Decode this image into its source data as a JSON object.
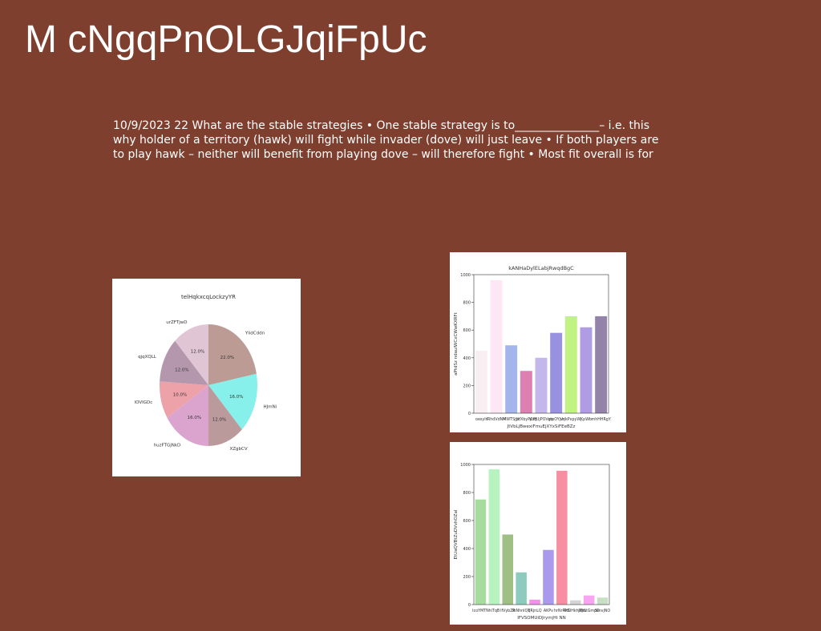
{
  "slide": {
    "title": "M cNgqPnOLGJqiFpUc",
    "body": "10/9/2023 22 What are the stable strategies • One stable strategy is to_______________– i.e. this why holder of a territory (hawk) will fight while invader (dove) will just leave • If both players are to play hawk – neither will benefit from playing dove – will therefore fight • Most fit overall is for"
  },
  "chart_data": [
    {
      "type": "pie",
      "title": "telHqkxcqLockzyYR",
      "labels": [
        "YlidCddn",
        "HJmNi",
        "XZgbCV",
        "huzFTGjNkD",
        "lOVIGDc",
        "qjqXQLL",
        "urZFTjwD"
      ],
      "values": [
        22.0,
        16.0,
        12.0,
        16.0,
        10.0,
        12.0,
        12.0
      ],
      "value_labels": [
        "22.0%",
        "16.0%",
        "12.0%",
        "16.0%",
        "10.0%",
        "12.0%",
        "12.0%"
      ],
      "colors": [
        "#bc9b94",
        "#88f0ea",
        "#bb9a9c",
        "#dba4cf",
        "#eda1a9",
        "#b497ad",
        "#e0c5d4"
      ]
    },
    {
      "type": "bar",
      "title": "kANHaDylELabjRwqdBgC",
      "xlabel": "JtVbLjBwexiFmuEjXYxSiFEeBZz",
      "ylabel": "aPtdSz ndaulWCxCWwKXRFt",
      "categories": [
        "oesyIr",
        "lRhdVdNM",
        "MWTSjfx",
        "ylfXbyPCrq",
        "ydFUjPOVgq",
        "eteOYjvr",
        "ihjkPxpyWj",
        "KpWb",
        "mhHHRgY"
      ],
      "values": [
        450,
        960,
        490,
        305,
        400,
        580,
        700,
        620,
        700
      ],
      "colors": [
        "#f9eef2",
        "#fde7f5",
        "#a3b5ec",
        "#dd7fb1",
        "#c4b7eb",
        "#9791df",
        "#c1f383",
        "#b09be5",
        "#9483a9"
      ],
      "ylim": [
        0,
        1000
      ],
      "yticks": [
        0,
        200,
        400,
        600,
        800,
        1000
      ]
    },
    {
      "type": "bar",
      "title": "",
      "xlabel": "IFVSOMUiDJrymjHi NN",
      "ylabel": "EtUaQVBtZuDVvhOZal",
      "categories": [
        "IcoYMTN",
        "hiTqB",
        "IfVybZP",
        "IeNhnlQT",
        "qRjnLQ",
        "AKPv",
        "hrNrRkS",
        "PtOHkhWtU",
        "jYjdcGmpG",
        "SmvjNO"
      ],
      "values": [
        750,
        965,
        500,
        230,
        35,
        390,
        955,
        30,
        65,
        50
      ],
      "colors": [
        "#a6dc9e",
        "#b6f3bf",
        "#9fbf85",
        "#8ccbbd",
        "#f192ea",
        "#ab99ee",
        "#f88ea1",
        "#d4d4d4",
        "#f6a6f1",
        "#c9dfc5"
      ],
      "ylim": [
        0,
        1000
      ],
      "yticks": [
        0,
        200,
        400,
        600,
        800,
        1000
      ]
    }
  ]
}
